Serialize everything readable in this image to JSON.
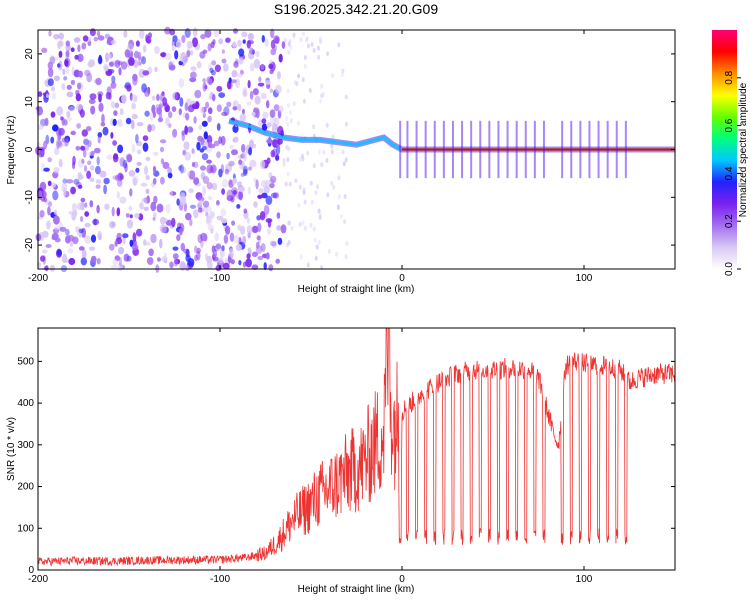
{
  "title": "S196.2025.342.21.20.G09",
  "colorbar": {
    "label": "Normalized spectral amplitude",
    "ticks": [
      "0.0",
      "0.2",
      "0.4",
      "0.6",
      "0.8"
    ],
    "tick_values": [
      0.0,
      0.2,
      0.4,
      0.6,
      0.8
    ],
    "range": [
      0,
      1
    ],
    "colors": [
      "#ffffff",
      "#d9c8f4",
      "#a46ff0",
      "#7a22ee",
      "#2222ff",
      "#00c8ff",
      "#00ff7f",
      "#66ff00",
      "#ffff00",
      "#ff8c00",
      "#ff0000",
      "#ff0077"
    ]
  },
  "chart_data": [
    {
      "type": "heatmap",
      "title": "S196.2025.342.21.20.G09",
      "xlabel": "Height of straight line (km)",
      "ylabel": "Frequency (Hz)",
      "xlim": [
        -200,
        150
      ],
      "ylim": [
        -25,
        25
      ],
      "xticks": [
        "-200",
        "-100",
        "0",
        "100"
      ],
      "xtick_values": [
        -200,
        -100,
        0,
        100
      ],
      "yticks": [
        "-20",
        "-10",
        "0",
        "10",
        "20"
      ],
      "ytick_values": [
        -20,
        -10,
        0,
        10,
        20
      ],
      "ridge": [
        {
          "x": -95,
          "y": 6.0
        },
        {
          "x": -85,
          "y": 5.0
        },
        {
          "x": -75,
          "y": 3.5
        },
        {
          "x": -65,
          "y": 2.5
        },
        {
          "x": -55,
          "y": 2.0
        },
        {
          "x": -45,
          "y": 2.0
        },
        {
          "x": -35,
          "y": 1.5
        },
        {
          "x": -25,
          "y": 1.0
        },
        {
          "x": -15,
          "y": 2.0
        },
        {
          "x": -10,
          "y": 2.5
        },
        {
          "x": -5,
          "y": 1.0
        },
        {
          "x": 0,
          "y": 0.0
        },
        {
          "x": 150,
          "y": 0.0
        }
      ],
      "ridge_amplitude": 0.95
    },
    {
      "type": "line",
      "title": "",
      "xlabel": "Height of straight line (km)",
      "ylabel": "SNR (10 * v/v)",
      "xlim": [
        -200,
        150
      ],
      "ylim": [
        0,
        580
      ],
      "xticks": [
        "-200",
        "-100",
        "0",
        "100"
      ],
      "xtick_values": [
        -200,
        -100,
        0,
        100
      ],
      "yticks": [
        "0",
        "100",
        "200",
        "300",
        "400",
        "500"
      ],
      "ytick_values": [
        0,
        100,
        200,
        300,
        400,
        500
      ],
      "color": "#ee3333",
      "series": [
        {
          "name": "SNR",
          "x": [
            -200,
            -180,
            -160,
            -140,
            -120,
            -100,
            -85,
            -75,
            -68,
            -60,
            -52,
            -45,
            -38,
            -30,
            -22,
            -15,
            -10,
            -8,
            -5,
            0,
            10,
            20,
            30,
            40,
            50,
            60,
            70,
            75,
            80,
            83,
            86,
            90,
            95,
            100,
            110,
            120,
            125,
            130,
            140,
            150
          ],
          "y": [
            20,
            22,
            21,
            23,
            24,
            25,
            30,
            40,
            70,
            120,
            150,
            180,
            200,
            230,
            250,
            300,
            330,
            560,
            340,
            380,
            420,
            450,
            470,
            480,
            480,
            485,
            480,
            460,
            380,
            330,
            300,
            490,
            500,
            495,
            490,
            480,
            450,
            460,
            470,
            470
          ]
        }
      ],
      "dropouts_x": [
        -1,
        3,
        8,
        13,
        18,
        23,
        28,
        33,
        38,
        43,
        48,
        53,
        58,
        63,
        68,
        73,
        78,
        88,
        93,
        98,
        103,
        108,
        113,
        118,
        123
      ],
      "spike": {
        "x": -7,
        "y": 580
      }
    }
  ]
}
